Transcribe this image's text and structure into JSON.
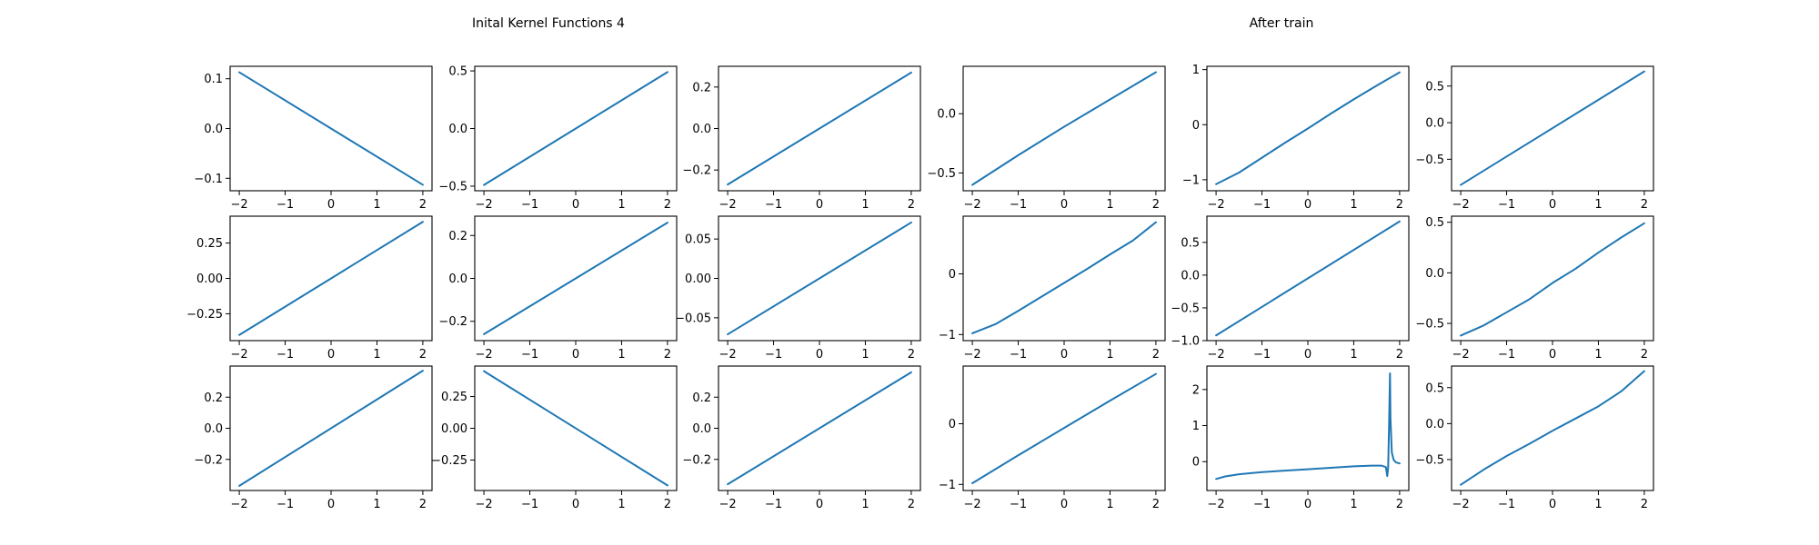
{
  "chart_data": {
    "type": "line",
    "titles": [
      {
        "text": "Inital Kernel Functions 4"
      },
      {
        "text": "After train"
      }
    ],
    "series_color": "#1f77b4",
    "grid": false,
    "legend": "none",
    "subplots": [
      {
        "row": 0,
        "col": 0,
        "xlim": [
          -2.2,
          2.2
        ],
        "ylim": [
          -0.125,
          0.125
        ],
        "xticks": [
          -2,
          -1,
          0,
          1,
          2
        ],
        "xtick_labels": [
          "−2",
          "−1",
          "0",
          "1",
          "2"
        ],
        "yticks": [
          -0.1,
          0.0,
          0.1
        ],
        "ytick_labels": [
          "−0.1",
          "0.0",
          "0.1"
        ],
        "x": [
          -2,
          2
        ],
        "y": [
          0.113,
          -0.113
        ]
      },
      {
        "row": 0,
        "col": 1,
        "xlim": [
          -2.2,
          2.2
        ],
        "ylim": [
          -0.54,
          0.54
        ],
        "xticks": [
          -2,
          -1,
          0,
          1,
          2
        ],
        "xtick_labels": [
          "−2",
          "−1",
          "0",
          "1",
          "2"
        ],
        "yticks": [
          -0.5,
          0.0,
          0.5
        ],
        "ytick_labels": [
          "−0.5",
          "0.0",
          "0.5"
        ],
        "x": [
          -2,
          2
        ],
        "y": [
          -0.49,
          0.49
        ]
      },
      {
        "row": 0,
        "col": 2,
        "xlim": [
          -2.2,
          2.2
        ],
        "ylim": [
          -0.3,
          0.3
        ],
        "xticks": [
          -2,
          -1,
          0,
          1,
          2
        ],
        "xtick_labels": [
          "−2",
          "−1",
          "0",
          "1",
          "2"
        ],
        "yticks": [
          -0.2,
          0.0,
          0.2
        ],
        "ytick_labels": [
          "−0.2",
          "0.0",
          "0.2"
        ],
        "x": [
          -2,
          2
        ],
        "y": [
          -0.27,
          0.27
        ]
      },
      {
        "row": 0,
        "col": 3,
        "xlim": [
          -2.2,
          2.2
        ],
        "ylim": [
          -0.65,
          0.4
        ],
        "xticks": [
          -2,
          -1,
          0,
          1,
          2
        ],
        "xtick_labels": [
          "−2",
          "−1",
          "0",
          "1",
          "2"
        ],
        "yticks": [
          -0.5,
          0.0
        ],
        "ytick_labels": [
          "−0.5",
          "0.0"
        ],
        "x": [
          -2,
          -1,
          0,
          1,
          2
        ],
        "y": [
          -0.6,
          -0.35,
          -0.11,
          0.12,
          0.35
        ]
      },
      {
        "row": 0,
        "col": 4,
        "xlim": [
          -2.2,
          2.2
        ],
        "ylim": [
          -1.2,
          1.06
        ],
        "xticks": [
          -2,
          -1,
          0,
          1,
          2
        ],
        "xtick_labels": [
          "−2",
          "−1",
          "0",
          "1",
          "2"
        ],
        "yticks": [
          -1,
          0,
          1
        ],
        "ytick_labels": [
          "−1",
          "0",
          "1"
        ],
        "x": [
          -2,
          -1.5,
          -1,
          -0.5,
          0,
          0.5,
          1,
          1.5,
          2
        ],
        "y": [
          -1.08,
          -0.87,
          -0.6,
          -0.33,
          -0.07,
          0.2,
          0.46,
          0.71,
          0.95
        ]
      },
      {
        "row": 0,
        "col": 5,
        "xlim": [
          -2.2,
          2.2
        ],
        "ylim": [
          -0.93,
          0.77
        ],
        "xticks": [
          -2,
          -1,
          0,
          1,
          2
        ],
        "xtick_labels": [
          "−2",
          "−1",
          "0",
          "1",
          "2"
        ],
        "yticks": [
          -0.5,
          0.0,
          0.5
        ],
        "ytick_labels": [
          "−0.5",
          "0.0",
          "0.5"
        ],
        "x": [
          -2,
          2
        ],
        "y": [
          -0.85,
          0.7
        ]
      },
      {
        "row": 1,
        "col": 0,
        "xlim": [
          -2.2,
          2.2
        ],
        "ylim": [
          -0.44,
          0.44
        ],
        "xticks": [
          -2,
          -1,
          0,
          1,
          2
        ],
        "xtick_labels": [
          "−2",
          "−1",
          "0",
          "1",
          "2"
        ],
        "yticks": [
          -0.25,
          0.0,
          0.25
        ],
        "ytick_labels": [
          "−0.25",
          "0.00",
          "0.25"
        ],
        "x": [
          -2,
          2
        ],
        "y": [
          -0.4,
          0.4
        ]
      },
      {
        "row": 1,
        "col": 1,
        "xlim": [
          -2.2,
          2.2
        ],
        "ylim": [
          -0.29,
          0.29
        ],
        "xticks": [
          -2,
          -1,
          0,
          1,
          2
        ],
        "xtick_labels": [
          "−2",
          "−1",
          "0",
          "1",
          "2"
        ],
        "yticks": [
          -0.2,
          0.0,
          0.2
        ],
        "ytick_labels": [
          "−0.2",
          "0.0",
          "0.2"
        ],
        "x": [
          -2,
          2
        ],
        "y": [
          -0.26,
          0.26
        ]
      },
      {
        "row": 1,
        "col": 2,
        "xlim": [
          -2.2,
          2.2
        ],
        "ylim": [
          -0.079,
          0.079
        ],
        "xticks": [
          -2,
          -1,
          0,
          1,
          2
        ],
        "xtick_labels": [
          "−2",
          "−1",
          "0",
          "1",
          "2"
        ],
        "yticks": [
          -0.05,
          0.0,
          0.05
        ],
        "ytick_labels": [
          "−0.05",
          "0.00",
          "0.05"
        ],
        "x": [
          -2,
          2
        ],
        "y": [
          -0.071,
          0.071
        ]
      },
      {
        "row": 1,
        "col": 3,
        "xlim": [
          -2.2,
          2.2
        ],
        "ylim": [
          -1.1,
          0.95
        ],
        "xticks": [
          -2,
          -1,
          0,
          1,
          2
        ],
        "xtick_labels": [
          "−2",
          "−1",
          "0",
          "1",
          "2"
        ],
        "yticks": [
          -1,
          0
        ],
        "ytick_labels": [
          "−1",
          "0"
        ],
        "x": [
          -2,
          -1.5,
          -1,
          -0.5,
          0,
          0.5,
          1,
          1.5,
          2
        ],
        "y": [
          -0.98,
          -0.83,
          -0.61,
          -0.38,
          -0.15,
          0.08,
          0.32,
          0.55,
          0.85
        ]
      },
      {
        "row": 1,
        "col": 4,
        "xlim": [
          -2.2,
          2.2
        ],
        "ylim": [
          -1.0,
          0.9
        ],
        "xticks": [
          -2,
          -1,
          0,
          1,
          2
        ],
        "xtick_labels": [
          "−2",
          "−1",
          "0",
          "1",
          "2"
        ],
        "yticks": [
          -1.0,
          -0.5,
          0.0,
          0.5
        ],
        "ytick_labels": [
          "−1.0",
          "−0.5",
          "0.0",
          "0.5"
        ],
        "x": [
          -2,
          2
        ],
        "y": [
          -0.92,
          0.82
        ]
      },
      {
        "row": 1,
        "col": 5,
        "xlim": [
          -2.2,
          2.2
        ],
        "ylim": [
          -0.67,
          0.56
        ],
        "xticks": [
          -2,
          -1,
          0,
          1,
          2
        ],
        "xtick_labels": [
          "−2",
          "−1",
          "0",
          "1",
          "2"
        ],
        "yticks": [
          -0.5,
          0.0,
          0.5
        ],
        "ytick_labels": [
          "−0.5",
          "0.0",
          "0.5"
        ],
        "x": [
          -2,
          -1.5,
          -1,
          -0.5,
          0,
          0.5,
          1,
          1.5,
          2
        ],
        "y": [
          -0.62,
          -0.52,
          -0.39,
          -0.26,
          -0.1,
          0.04,
          0.2,
          0.35,
          0.49
        ]
      },
      {
        "row": 2,
        "col": 0,
        "xlim": [
          -2.2,
          2.2
        ],
        "ylim": [
          -0.4,
          0.4
        ],
        "xticks": [
          -2,
          -1,
          0,
          1,
          2
        ],
        "xtick_labels": [
          "−2",
          "−1",
          "0",
          "1",
          "2"
        ],
        "yticks": [
          -0.2,
          0.0,
          0.2
        ],
        "ytick_labels": [
          "−0.2",
          "0.0",
          "0.2"
        ],
        "x": [
          -2,
          2
        ],
        "y": [
          -0.37,
          0.37
        ]
      },
      {
        "row": 2,
        "col": 1,
        "xlim": [
          -2.2,
          2.2
        ],
        "ylim": [
          -0.49,
          0.49
        ],
        "xticks": [
          -2,
          -1,
          0,
          1,
          2
        ],
        "xtick_labels": [
          "−2",
          "−1",
          "0",
          "1",
          "2"
        ],
        "yticks": [
          -0.25,
          0.0,
          0.25
        ],
        "ytick_labels": [
          "−0.25",
          "0.00",
          "0.25"
        ],
        "x": [
          -2,
          2
        ],
        "y": [
          0.45,
          -0.45
        ]
      },
      {
        "row": 2,
        "col": 2,
        "xlim": [
          -2.2,
          2.2
        ],
        "ylim": [
          -0.4,
          0.4
        ],
        "xticks": [
          -2,
          -1,
          0,
          1,
          2
        ],
        "xtick_labels": [
          "−2",
          "−1",
          "0",
          "1",
          "2"
        ],
        "yticks": [
          -0.2,
          0.0,
          0.2
        ],
        "ytick_labels": [
          "−0.2",
          "0.0",
          "0.2"
        ],
        "x": [
          -2,
          2
        ],
        "y": [
          -0.36,
          0.36
        ]
      },
      {
        "row": 2,
        "col": 3,
        "xlim": [
          -2.2,
          2.2
        ],
        "ylim": [
          -1.1,
          0.95
        ],
        "xticks": [
          -2,
          -1,
          0,
          1,
          2
        ],
        "xtick_labels": [
          "−2",
          "−1",
          "0",
          "1",
          "2"
        ],
        "yticks": [
          -1,
          0
        ],
        "ytick_labels": [
          "−1",
          "0"
        ],
        "x": [
          -2,
          -1,
          0,
          1,
          2
        ],
        "y": [
          -0.98,
          -0.52,
          -0.07,
          0.38,
          0.82
        ]
      },
      {
        "row": 2,
        "col": 4,
        "xlim": [
          -2.2,
          2.2
        ],
        "ylim": [
          -0.8,
          2.65
        ],
        "xticks": [
          -2,
          -1,
          0,
          1,
          2
        ],
        "xtick_labels": [
          "−2",
          "−1",
          "0",
          "1",
          "2"
        ],
        "yticks": [
          0,
          1,
          2
        ],
        "ytick_labels": [
          "0",
          "1",
          "2"
        ],
        "x": [
          -2,
          -1.8,
          -1.5,
          -1,
          -0.5,
          0,
          0.5,
          1,
          1.4,
          1.6,
          1.7,
          1.73,
          1.75,
          1.77,
          1.79,
          1.8,
          1.83,
          1.87,
          1.92,
          2
        ],
        "y": [
          -0.48,
          -0.41,
          -0.35,
          -0.29,
          -0.25,
          -0.21,
          -0.17,
          -0.13,
          -0.11,
          -0.11,
          -0.15,
          -0.4,
          -0.15,
          1.0,
          2.45,
          1.2,
          0.25,
          0.05,
          -0.02,
          -0.05
        ]
      },
      {
        "row": 2,
        "col": 5,
        "xlim": [
          -2.2,
          2.2
        ],
        "ylim": [
          -0.93,
          0.8
        ],
        "xticks": [
          -2,
          -1,
          0,
          1,
          2
        ],
        "xtick_labels": [
          "−2",
          "−1",
          "0",
          "1",
          "2"
        ],
        "yticks": [
          -0.5,
          0.0,
          0.5
        ],
        "ytick_labels": [
          "−0.5",
          "0.0",
          "0.5"
        ],
        "x": [
          -2,
          -1.5,
          -1,
          -0.5,
          0,
          0.5,
          1,
          1.5,
          2
        ],
        "y": [
          -0.85,
          -0.64,
          -0.45,
          -0.28,
          -0.1,
          0.07,
          0.24,
          0.45,
          0.73
        ]
      }
    ]
  }
}
